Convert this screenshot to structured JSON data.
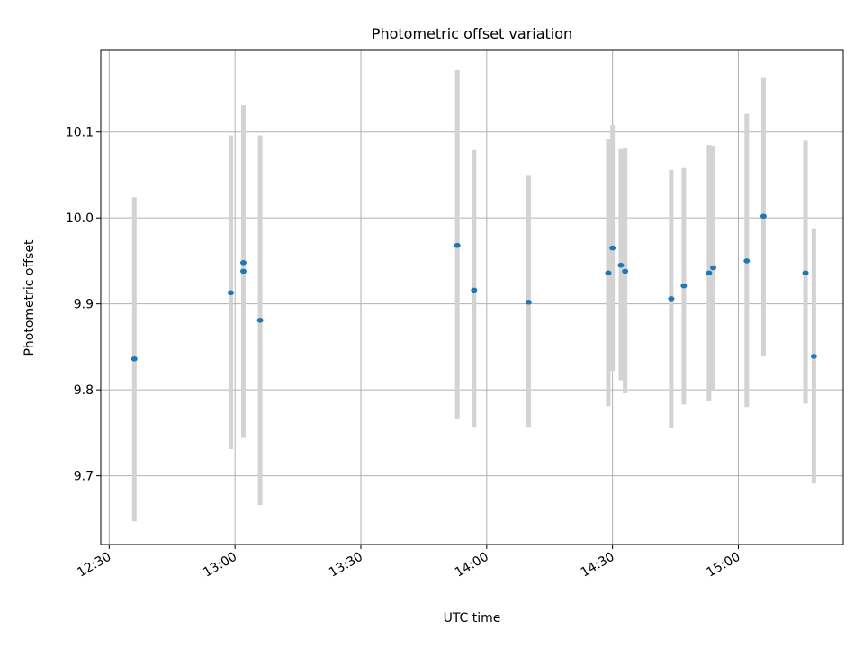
{
  "chart_data": {
    "type": "scatter",
    "title": "Photometric offset variation",
    "xlabel": "UTC time",
    "ylabel": "Photometric offset",
    "xlim": [
      "12:28",
      "15:25"
    ],
    "ylim": [
      9.62,
      10.195
    ],
    "x_ticks": [
      "12:30",
      "13:00",
      "13:30",
      "14:00",
      "14:30",
      "15:00"
    ],
    "y_ticks": [
      "9.7",
      "9.8",
      "9.9",
      "10.0",
      "10.1"
    ],
    "grid": true,
    "point_color": "#1f77b4",
    "errorbar_color": "#d3d3d3",
    "points": [
      {
        "x": "12:36",
        "y": 9.836,
        "yerr_low": 9.647,
        "yerr_high": 10.024
      },
      {
        "x": "12:59",
        "y": 9.913,
        "yerr_low": 9.731,
        "yerr_high": 10.096
      },
      {
        "x": "13:02",
        "y": 9.948,
        "yerr_low": 9.788,
        "yerr_high": 10.111
      },
      {
        "x": "13:02",
        "y": 9.938,
        "yerr_low": 9.744,
        "yerr_high": 10.131
      },
      {
        "x": "13:06",
        "y": 9.881,
        "yerr_low": 9.666,
        "yerr_high": 10.096
      },
      {
        "x": "13:53",
        "y": 9.968,
        "yerr_low": 9.766,
        "yerr_high": 10.172
      },
      {
        "x": "13:57",
        "y": 9.916,
        "yerr_low": 9.757,
        "yerr_high": 10.079
      },
      {
        "x": "14:10",
        "y": 9.902,
        "yerr_low": 9.757,
        "yerr_high": 10.049
      },
      {
        "x": "14:29",
        "y": 9.936,
        "yerr_low": 9.781,
        "yerr_high": 10.092
      },
      {
        "x": "14:30",
        "y": 9.965,
        "yerr_low": 9.822,
        "yerr_high": 10.108
      },
      {
        "x": "14:32",
        "y": 9.945,
        "yerr_low": 9.811,
        "yerr_high": 10.08
      },
      {
        "x": "14:33",
        "y": 9.938,
        "yerr_low": 9.796,
        "yerr_high": 10.082
      },
      {
        "x": "14:44",
        "y": 9.906,
        "yerr_low": 9.756,
        "yerr_high": 10.056
      },
      {
        "x": "14:47",
        "y": 9.921,
        "yerr_low": 9.783,
        "yerr_high": 10.058
      },
      {
        "x": "14:53",
        "y": 9.936,
        "yerr_low": 9.787,
        "yerr_high": 10.085
      },
      {
        "x": "14:54",
        "y": 9.942,
        "yerr_low": 9.8,
        "yerr_high": 10.084
      },
      {
        "x": "15:02",
        "y": 9.95,
        "yerr_low": 9.78,
        "yerr_high": 10.121
      },
      {
        "x": "15:06",
        "y": 10.002,
        "yerr_low": 9.84,
        "yerr_high": 10.163
      },
      {
        "x": "15:16",
        "y": 9.936,
        "yerr_low": 9.784,
        "yerr_high": 10.09
      },
      {
        "x": "15:18",
        "y": 9.839,
        "yerr_low": 9.691,
        "yerr_high": 9.988
      }
    ]
  }
}
